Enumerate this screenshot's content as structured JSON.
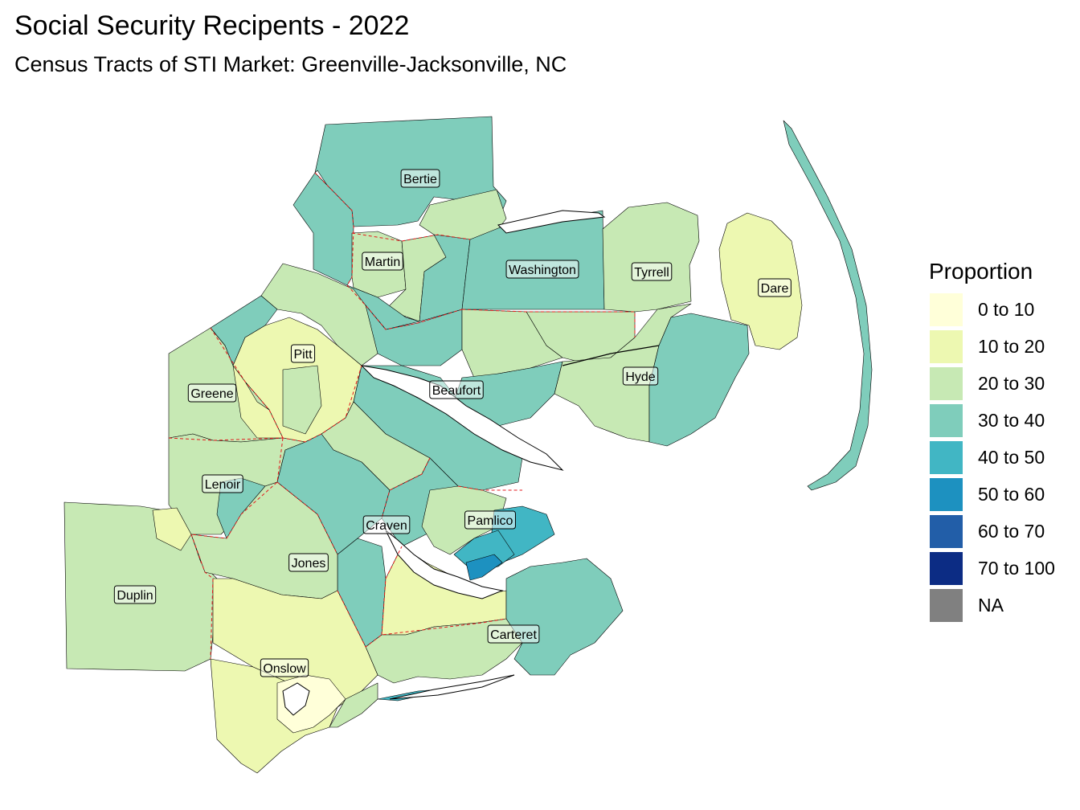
{
  "title": "Social Security Recipents - 2022",
  "subtitle": "Census Tracts of STI Market: Greenville-Jacksonville, NC",
  "legend": {
    "title": "Proportion",
    "items": [
      {
        "label": "0 to 10",
        "color": "#ffffd9"
      },
      {
        "label": "10 to 20",
        "color": "#edf8b1"
      },
      {
        "label": "20 to 30",
        "color": "#c7e9b4"
      },
      {
        "label": "30 to 40",
        "color": "#7fcdbb"
      },
      {
        "label": "40 to 50",
        "color": "#41b6c4"
      },
      {
        "label": "50 to 60",
        "color": "#1d91c0"
      },
      {
        "label": "60 to 70",
        "color": "#225ea8"
      },
      {
        "label": "70 to 100",
        "color": "#0c2c84"
      },
      {
        "label": "NA",
        "color": "#808080"
      }
    ]
  },
  "counties": [
    {
      "name": "Bertie"
    },
    {
      "name": "Martin"
    },
    {
      "name": "Washington"
    },
    {
      "name": "Tyrrell"
    },
    {
      "name": "Dare"
    },
    {
      "name": "Pitt"
    },
    {
      "name": "Greene"
    },
    {
      "name": "Beaufort"
    },
    {
      "name": "Hyde"
    },
    {
      "name": "Lenoir"
    },
    {
      "name": "Craven"
    },
    {
      "name": "Pamlico"
    },
    {
      "name": "Duplin"
    },
    {
      "name": "Jones"
    },
    {
      "name": "Carteret"
    },
    {
      "name": "Onslow"
    }
  ]
}
